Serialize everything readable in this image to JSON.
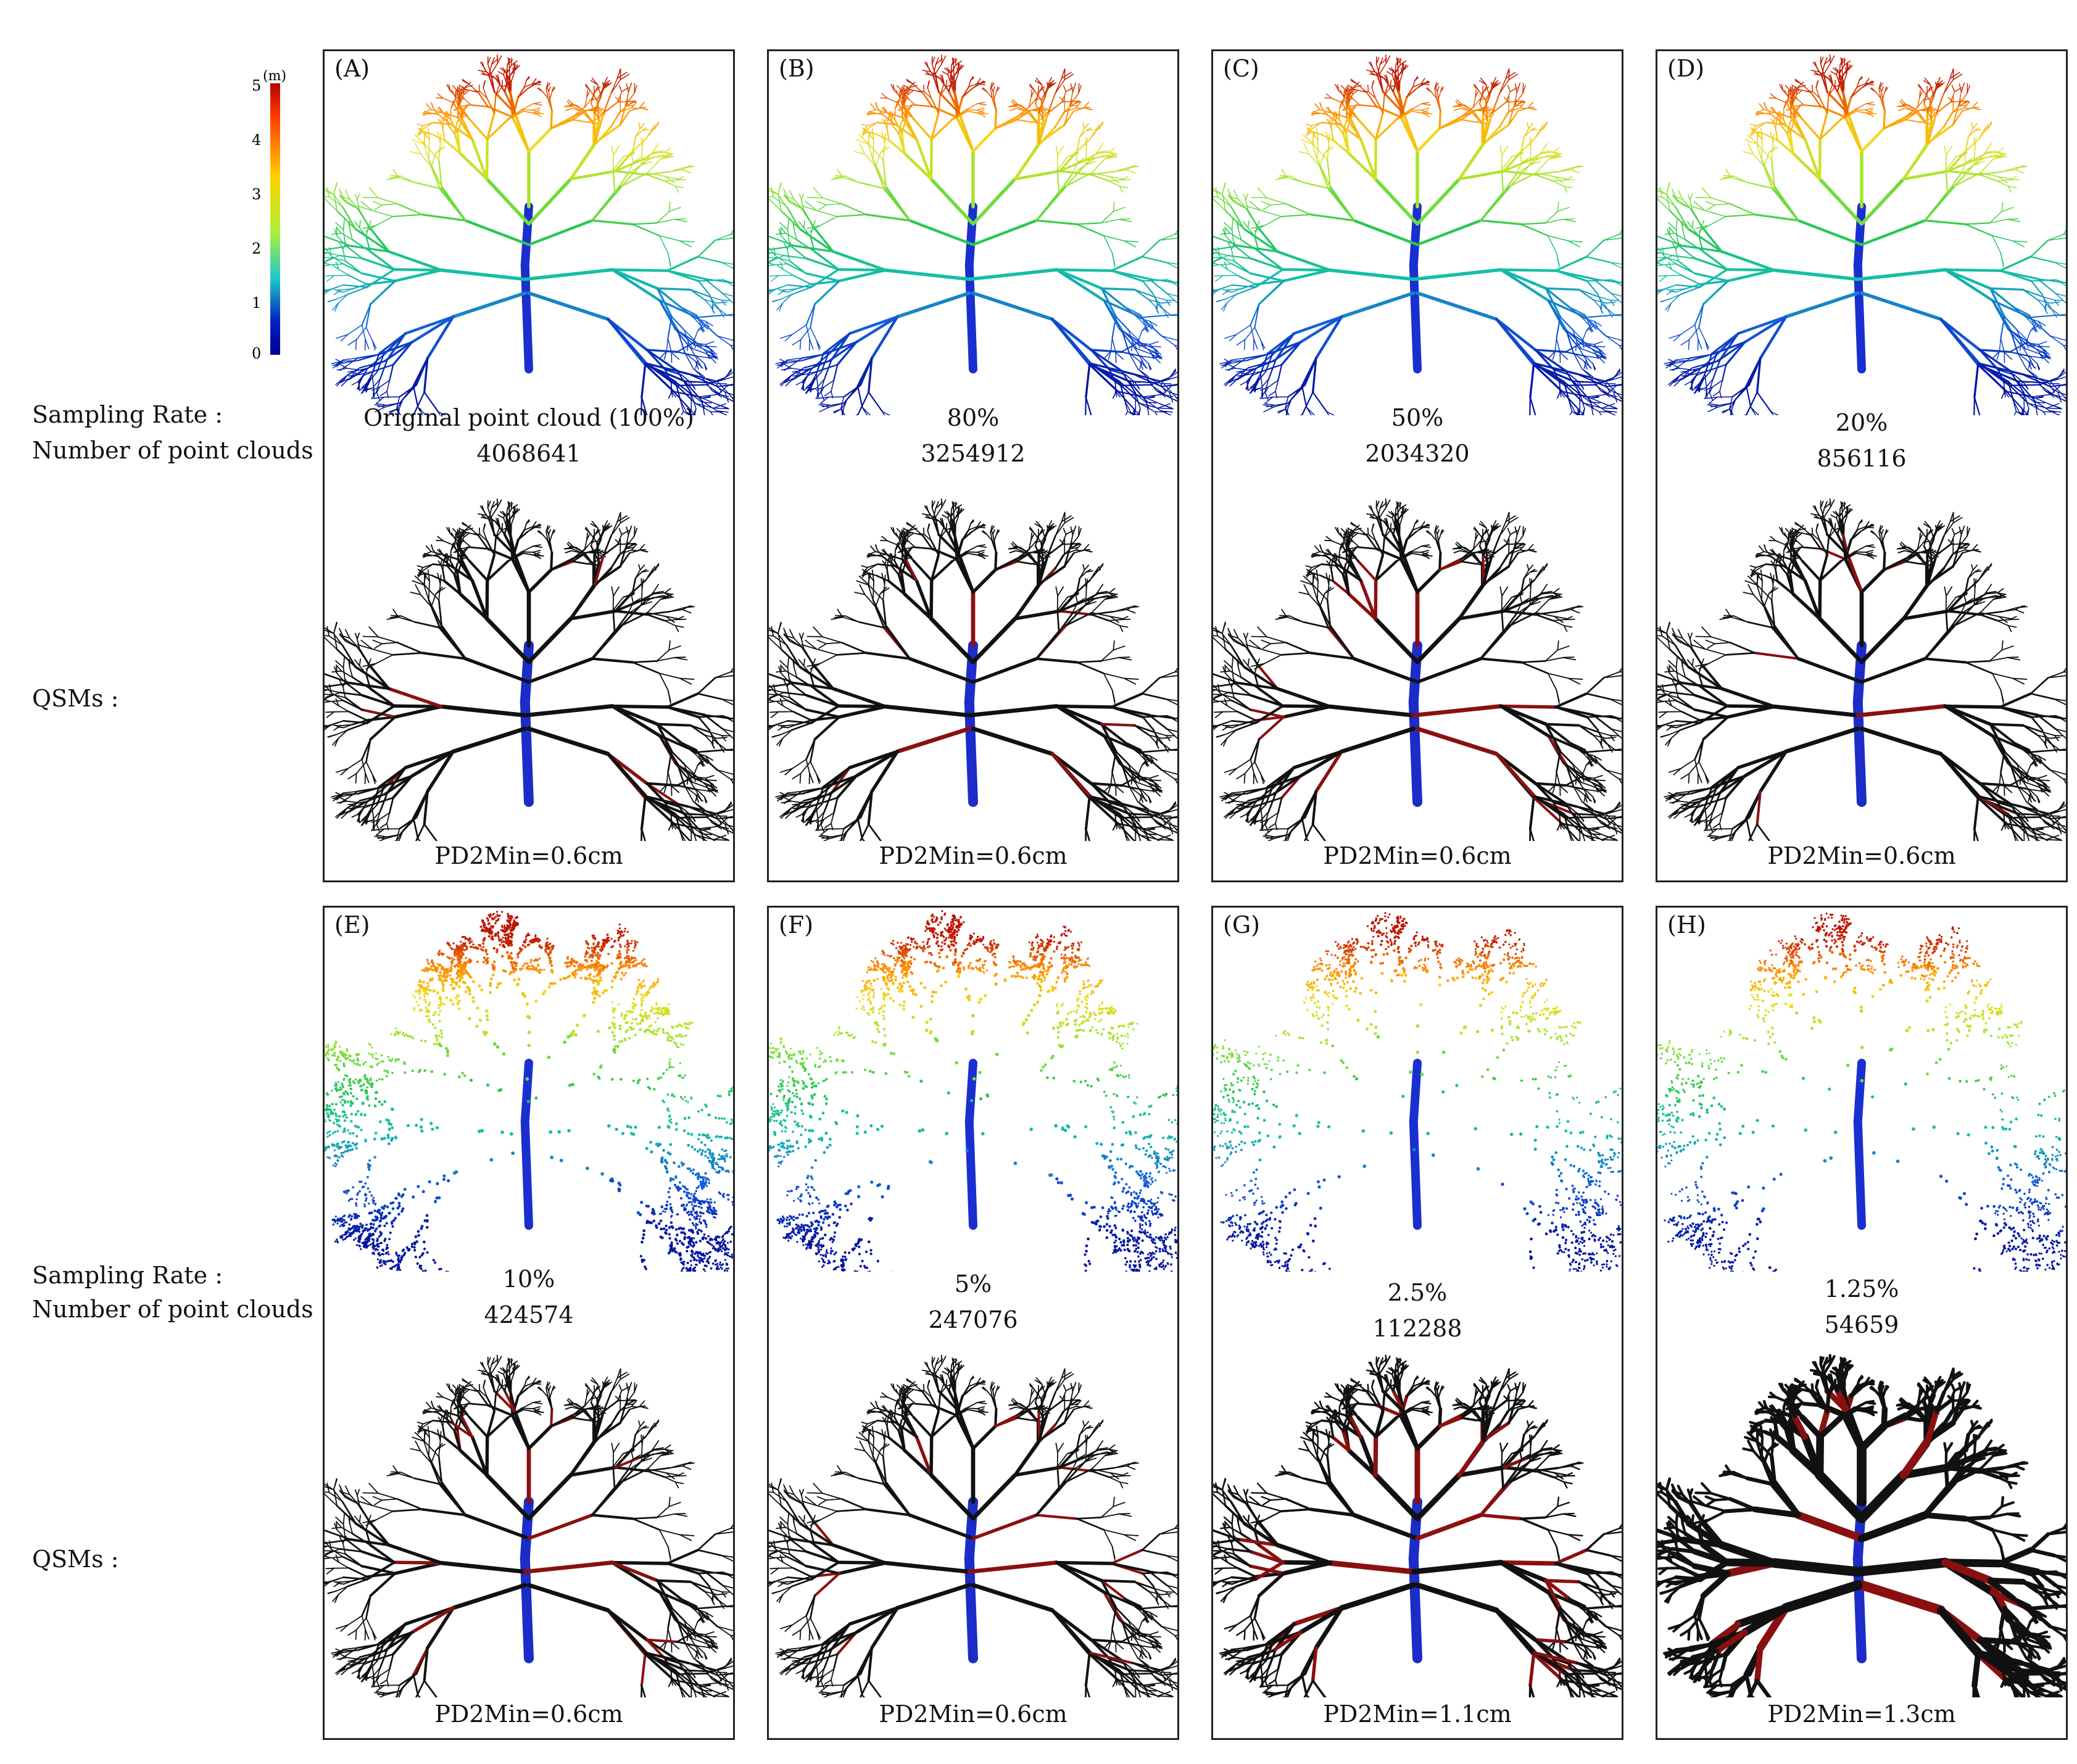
{
  "colorbar": {
    "unit": "(m)",
    "ticks": [
      "5",
      "4",
      "3",
      "2",
      "1",
      "0"
    ],
    "colors": [
      "#b40000",
      "#ff3a00",
      "#ffd400",
      "#aaf03c",
      "#1ec8c8",
      "#0020c0",
      "#000090"
    ]
  },
  "row_labels": {
    "sampling_rate": "Sampling Rate :",
    "number_points": "Number of point clouds :",
    "qsms": "QSMs :"
  },
  "panels": [
    {
      "label": "(A)",
      "rate": "Original point cloud (100%)",
      "count": "4068641",
      "pd2min": "PD2Min=0.6cm",
      "density": 1.0,
      "qsm_red": 0.05,
      "qsm_width": 3
    },
    {
      "label": "(B)",
      "rate": "80%",
      "count": "3254912",
      "pd2min": "PD2Min=0.6cm",
      "density": 0.8,
      "qsm_red": 0.05,
      "qsm_width": 3
    },
    {
      "label": "(C)",
      "rate": "50%",
      "count": "2034320",
      "pd2min": "PD2Min=0.6cm",
      "density": 0.5,
      "qsm_red": 0.08,
      "qsm_width": 3
    },
    {
      "label": "(D)",
      "rate": "20%",
      "count": "856116",
      "pd2min": "PD2Min=0.6cm",
      "density": 0.2,
      "qsm_red": 0.06,
      "qsm_width": 3
    },
    {
      "label": "(E)",
      "rate": "10%",
      "count": "424574",
      "pd2min": "PD2Min=0.6cm",
      "density": 0.1,
      "qsm_red": 0.1,
      "qsm_width": 3
    },
    {
      "label": "(F)",
      "rate": "5%",
      "count": "247076",
      "pd2min": "PD2Min=0.6cm",
      "density": 0.05,
      "qsm_red": 0.1,
      "qsm_width": 3
    },
    {
      "label": "(G)",
      "rate": "2.5%",
      "count": "112288",
      "pd2min": "PD2Min=1.1cm",
      "density": 0.025,
      "qsm_red": 0.2,
      "qsm_width": 4
    },
    {
      "label": "(H)",
      "rate": "1.25%",
      "count": "54659",
      "pd2min": "PD2Min=1.3cm",
      "density": 0.0125,
      "qsm_red": 0.08,
      "qsm_width": 7
    }
  ]
}
